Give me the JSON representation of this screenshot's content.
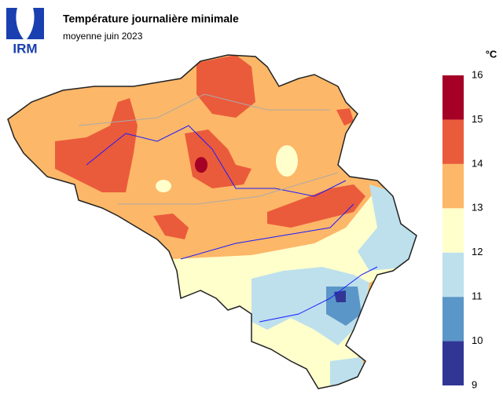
{
  "header": {
    "logo": "IRM",
    "title": "Température journalière minimale",
    "subtitle": "moyenne juin 2023"
  },
  "legend": {
    "unit": "°C",
    "ticks": [
      9,
      10,
      11,
      12,
      13,
      14,
      15,
      16
    ],
    "colors": [
      "#313695",
      "#5b96c8",
      "#bde0ec",
      "#ffffcc",
      "#fdb768",
      "#ea5b3b",
      "#a50026"
    ]
  }
}
